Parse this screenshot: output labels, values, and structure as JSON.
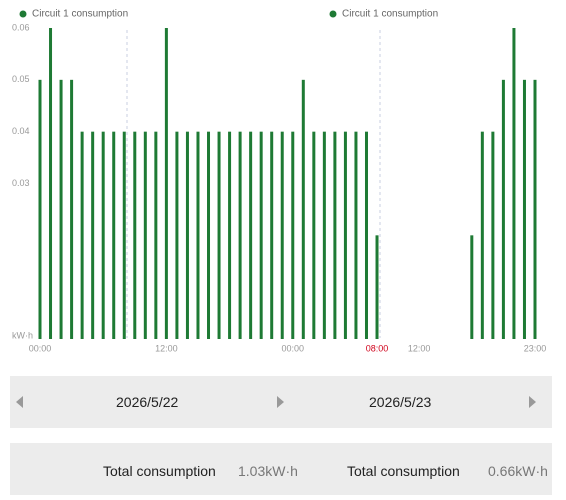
{
  "chart_data": {
    "type": "bar",
    "series": [
      {
        "name": "Circuit 1 consumption",
        "color": "#1e7a34",
        "x": [
          0,
          1,
          2,
          3,
          4,
          5,
          6,
          7,
          8,
          9,
          10,
          11,
          12,
          13,
          14,
          15,
          16,
          17,
          18,
          19,
          20,
          21,
          22,
          23,
          24,
          25,
          26,
          27,
          28,
          29,
          30,
          31,
          32,
          41,
          42,
          43,
          44,
          45,
          46,
          47
        ],
        "values": [
          0.05,
          0.06,
          0.05,
          0.05,
          0.04,
          0.04,
          0.04,
          0.04,
          0.04,
          0.04,
          0.04,
          0.04,
          0.06,
          0.04,
          0.04,
          0.04,
          0.04,
          0.04,
          0.04,
          0.04,
          0.04,
          0.04,
          0.04,
          0.04,
          0.04,
          0.05,
          0.04,
          0.04,
          0.04,
          0.04,
          0.04,
          0.04,
          0.02,
          0.02,
          0.04,
          0.04,
          0.05,
          0.06,
          0.05,
          0.05
        ]
      }
    ],
    "y_label": "kW·h",
    "ylim": [
      0,
      0.06
    ],
    "yticks": [
      0.03,
      0.04,
      0.05,
      0.06
    ],
    "xlim": [
      0,
      47
    ],
    "xticks": [
      {
        "value": 0,
        "label": "00:00"
      },
      {
        "value": 12,
        "label": "12:00"
      },
      {
        "value": 24,
        "label": "00:00"
      },
      {
        "value": 32,
        "label": "08:00",
        "color": "#d0021b"
      },
      {
        "value": 36,
        "label": "12:00"
      },
      {
        "value": 47,
        "label": "23:00"
      }
    ]
  },
  "date_nav": [
    "2026/5/22",
    "2026/5/23"
  ],
  "totals": [
    {
      "label": "Total consumption",
      "value": "1.03kW·h"
    },
    {
      "label": "Total consumption",
      "value": "0.66kW·h"
    }
  ]
}
